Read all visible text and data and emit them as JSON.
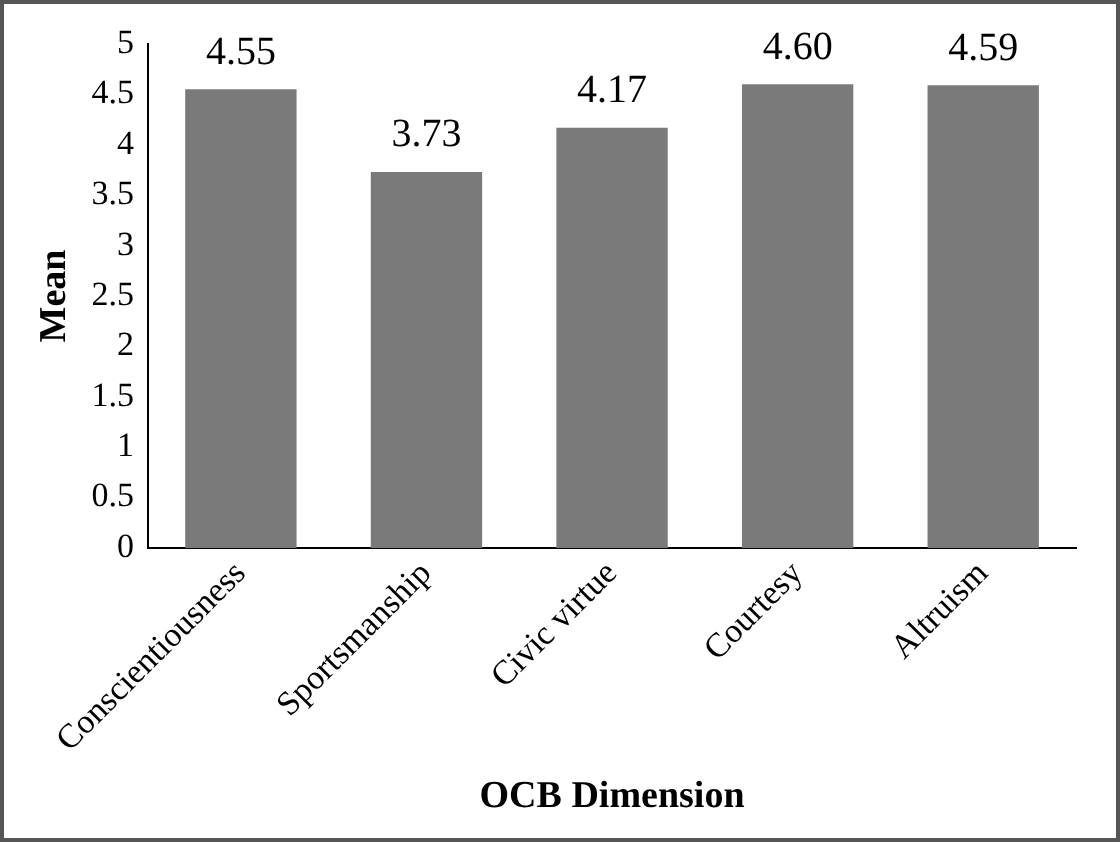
{
  "chart_data": {
    "type": "bar",
    "xlabel": "OCB Dimension",
    "ylabel": "Mean",
    "categories": [
      "Conscientiousness",
      "Sportsmanship",
      "Civic virtue",
      "Courtesy",
      "Altruism"
    ],
    "values": [
      4.55,
      3.73,
      4.17,
      4.6,
      4.59
    ],
    "value_labels": [
      "4.55",
      "3.73",
      "4.17",
      "4.60",
      "4.59"
    ],
    "color": "#7a7a7a",
    "ylim": [
      0,
      5
    ],
    "yticks": [
      0,
      0.5,
      1,
      1.5,
      2,
      2.5,
      3,
      3.5,
      4,
      4.5,
      5
    ],
    "grid": false,
    "legend": false
  }
}
